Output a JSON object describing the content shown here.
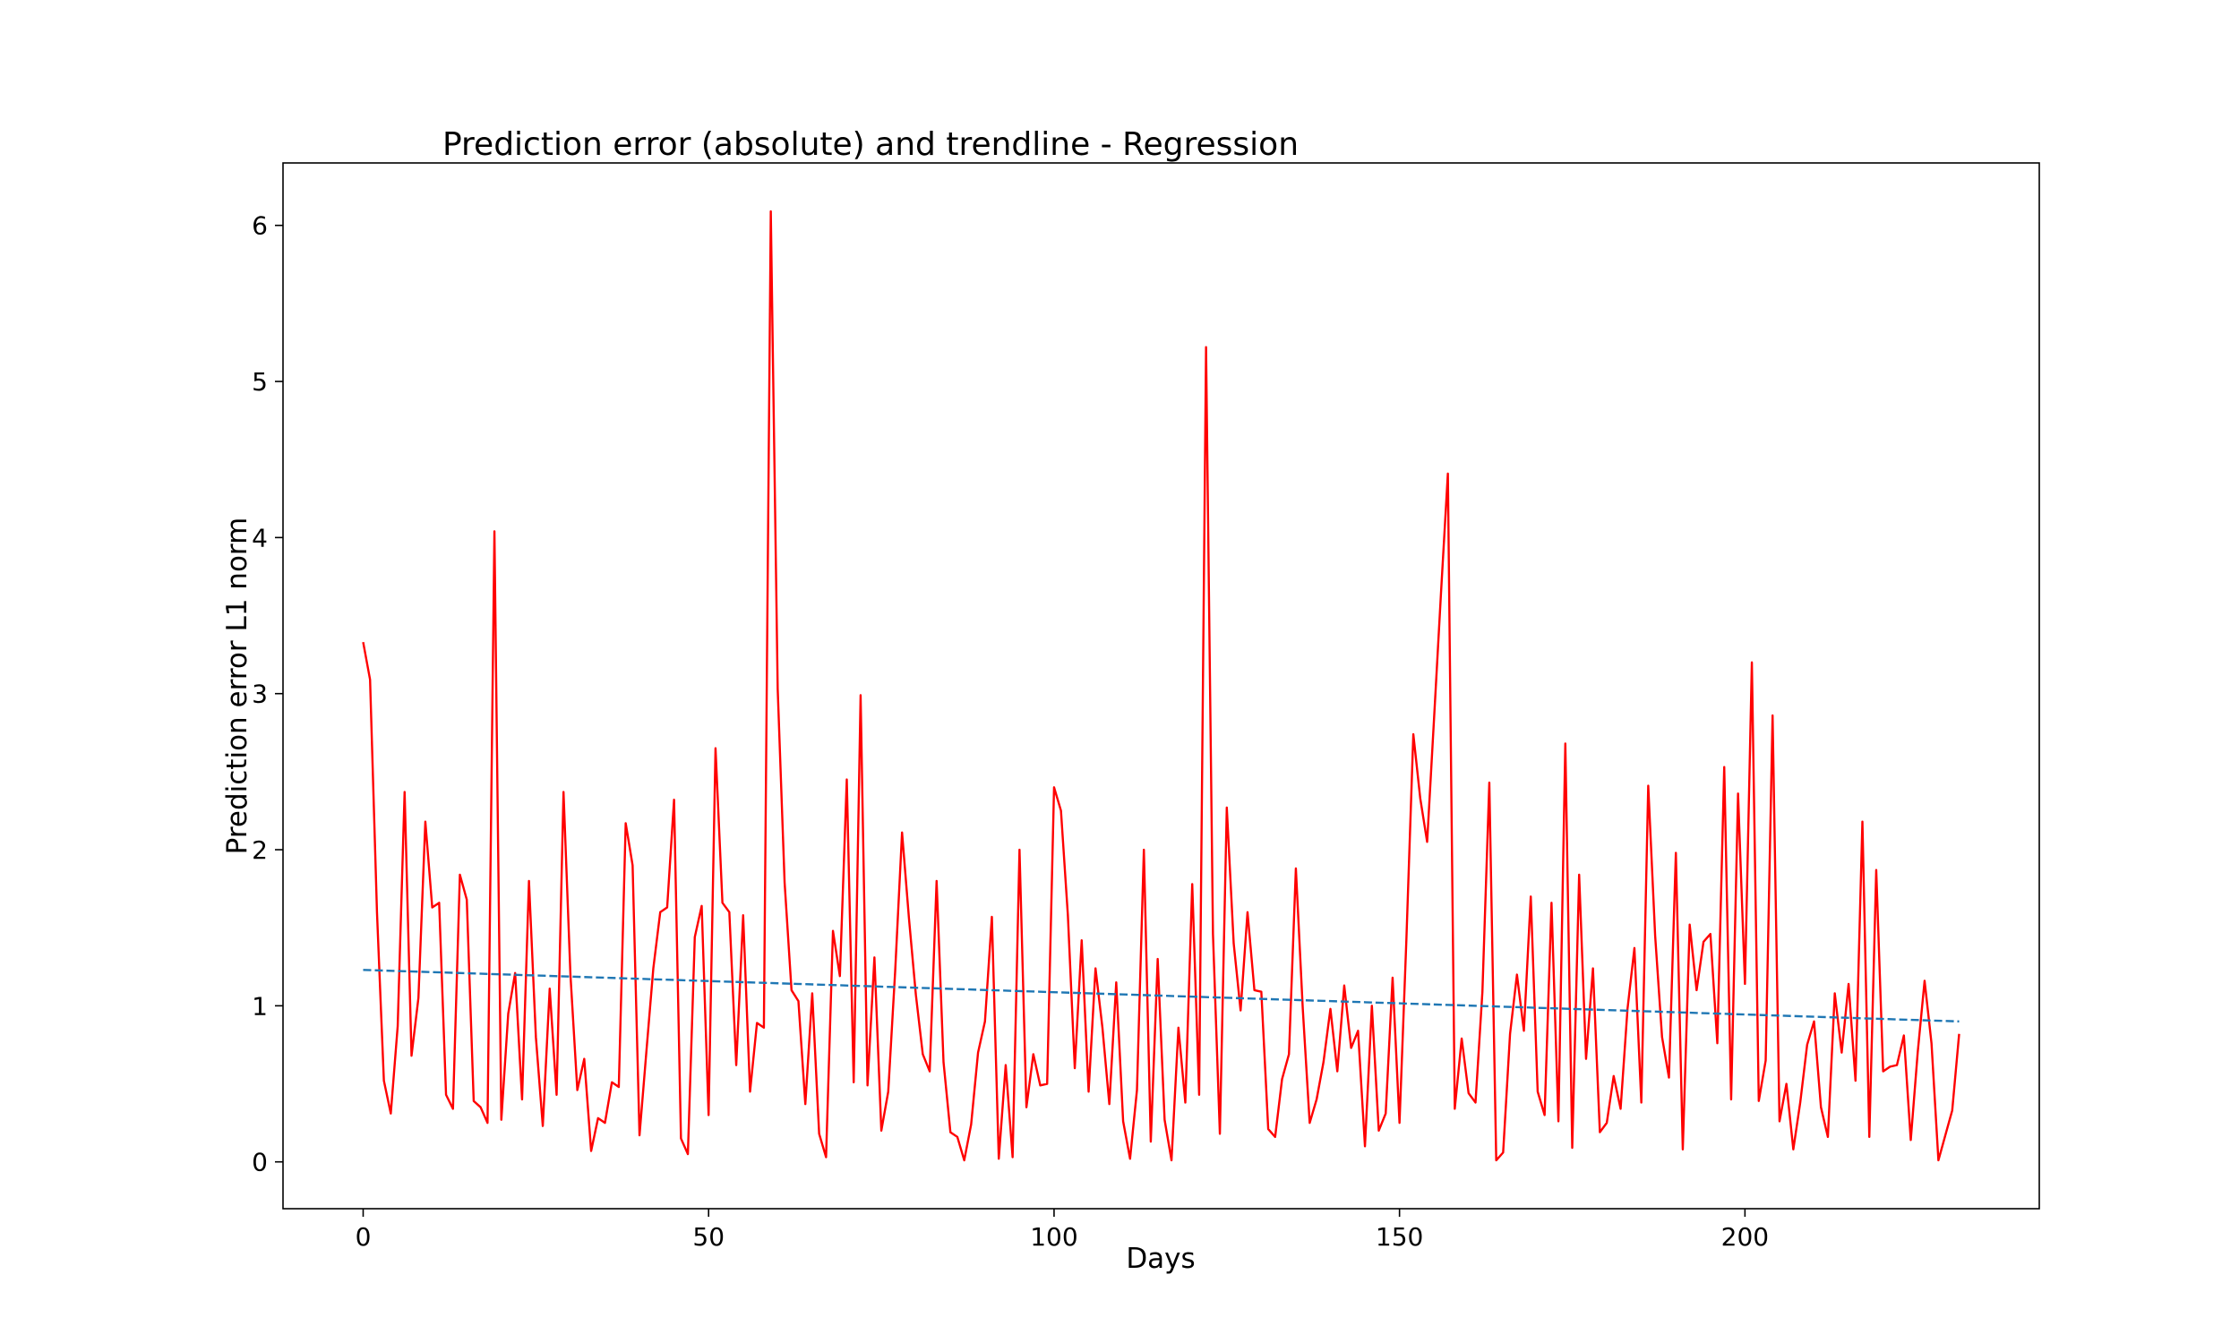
{
  "chart_data": {
    "type": "line",
    "title": "Prediction error (absolute) and trendline - Regression",
    "xlabel": "Days",
    "ylabel": "Prediction error L1 norm",
    "xlim": [
      -11.6,
      242.6
    ],
    "ylim": [
      -0.3,
      6.4
    ],
    "x_ticks": [
      0,
      50,
      100,
      150,
      200
    ],
    "y_ticks": [
      0,
      1,
      2,
      3,
      4,
      5,
      6
    ],
    "grid": false,
    "legend": "none",
    "series": [
      {
        "color": "#ff0000",
        "style": "solid",
        "values": [
          3.33,
          3.09,
          1.6,
          0.52,
          0.31,
          0.87,
          2.37,
          0.68,
          1.05,
          2.18,
          1.63,
          1.66,
          0.43,
          0.34,
          1.84,
          1.68,
          0.39,
          0.35,
          0.25,
          4.04,
          0.27,
          0.95,
          1.21,
          0.4,
          1.8,
          0.8,
          0.23,
          1.11,
          0.43,
          2.37,
          1.2,
          0.46,
          0.66,
          0.07,
          0.28,
          0.25,
          0.51,
          0.48,
          2.17,
          1.9,
          0.17,
          0.71,
          1.24,
          1.6,
          1.63,
          2.32,
          0.15,
          0.05,
          1.44,
          1.64,
          0.3,
          2.65,
          1.66,
          1.6,
          0.62,
          1.58,
          0.45,
          0.89,
          0.86,
          6.09,
          3.03,
          1.79,
          1.1,
          1.03,
          0.37,
          1.08,
          0.18,
          0.03,
          1.48,
          1.19,
          2.45,
          0.51,
          2.99,
          0.49,
          1.31,
          0.2,
          0.45,
          1.22,
          2.11,
          1.56,
          1.07,
          0.69,
          0.58,
          1.8,
          0.64,
          0.19,
          0.16,
          0.01,
          0.24,
          0.7,
          0.9,
          1.57,
          0.02,
          0.62,
          0.03,
          2.0,
          0.35,
          0.69,
          0.49,
          0.5,
          2.4,
          2.25,
          1.58,
          0.6,
          1.42,
          0.45,
          1.24,
          0.86,
          0.37,
          1.15,
          0.26,
          0.02,
          0.46,
          2.0,
          0.13,
          1.3,
          0.27,
          0.01,
          0.86,
          0.38,
          1.78,
          0.43,
          5.22,
          1.46,
          0.18,
          2.27,
          1.4,
          0.97,
          1.6,
          1.1,
          1.09,
          0.21,
          0.16,
          0.53,
          0.69,
          1.88,
          0.98,
          0.25,
          0.4,
          0.64,
          0.98,
          0.58,
          1.13,
          0.73,
          0.84,
          0.1,
          1.0,
          0.2,
          0.31,
          1.18,
          0.25,
          1.43,
          2.74,
          2.33,
          2.05,
          2.84,
          3.64,
          4.41,
          0.34,
          0.79,
          0.44,
          0.38,
          1.09,
          2.43,
          0.01,
          0.06,
          0.82,
          1.2,
          0.84,
          1.7,
          0.45,
          0.3,
          1.66,
          0.26,
          2.68,
          0.09,
          1.84,
          0.66,
          1.24,
          0.19,
          0.25,
          0.55,
          0.34,
          0.98,
          1.37,
          0.38,
          2.41,
          1.45,
          0.8,
          0.54,
          1.98,
          0.08,
          1.52,
          1.1,
          1.41,
          1.46,
          0.76,
          2.53,
          0.4,
          2.36,
          1.14,
          3.2,
          0.39,
          0.65,
          2.86,
          0.26,
          0.5,
          0.08,
          0.38,
          0.75,
          0.9,
          0.35,
          0.16,
          1.08,
          0.7,
          1.14,
          0.52,
          2.18,
          0.16,
          1.87,
          0.58,
          0.61,
          0.62,
          0.81,
          0.14,
          0.7,
          1.16,
          0.76,
          0.01,
          0.17,
          0.33,
          0.82
        ]
      },
      {
        "color": "#1f77b4",
        "style": "dashed",
        "x": [
          0,
          231
        ],
        "values": [
          1.23,
          0.9
        ]
      }
    ]
  }
}
